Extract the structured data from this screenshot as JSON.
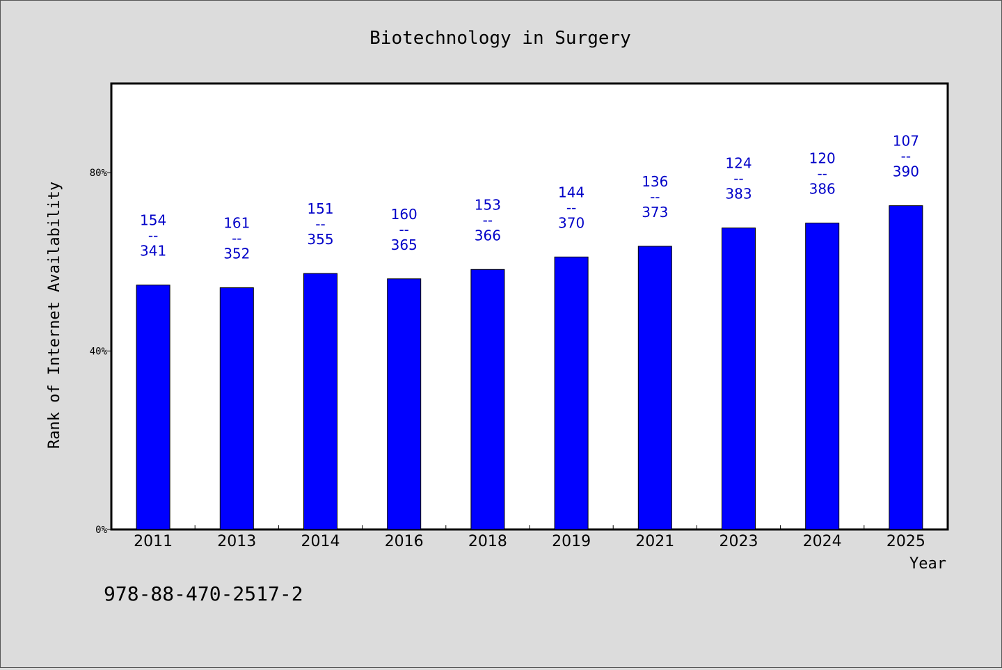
{
  "chart_data": {
    "type": "bar",
    "title": "Biotechnology in Surgery",
    "xlabel": "Year",
    "ylabel": "Rank of Internet Availability",
    "categories": [
      "2011",
      "2013",
      "2014",
      "2016",
      "2018",
      "2019",
      "2021",
      "2023",
      "2024",
      "2025"
    ],
    "values": [
      54.8,
      54.2,
      57.4,
      56.2,
      58.3,
      61.1,
      63.5,
      67.6,
      68.7,
      72.6
    ],
    "bar_labels": [
      {
        "top": "154",
        "sep": "--",
        "bottom": "341"
      },
      {
        "top": "161",
        "sep": "--",
        "bottom": "352"
      },
      {
        "top": "151",
        "sep": "--",
        "bottom": "355"
      },
      {
        "top": "160",
        "sep": "--",
        "bottom": "365"
      },
      {
        "top": "153",
        "sep": "--",
        "bottom": "366"
      },
      {
        "top": "144",
        "sep": "--",
        "bottom": "370"
      },
      {
        "top": "136",
        "sep": "--",
        "bottom": "373"
      },
      {
        "top": "124",
        "sep": "--",
        "bottom": "383"
      },
      {
        "top": "120",
        "sep": "--",
        "bottom": "386"
      },
      {
        "top": "107",
        "sep": "--",
        "bottom": "390"
      }
    ],
    "ylim": [
      0,
      100
    ],
    "yticks": [
      0,
      40,
      80
    ],
    "ytick_labels": [
      "0%",
      "40%",
      "80%"
    ],
    "grid": false,
    "colors": {
      "bar": "#0000ff",
      "bar_label": "#0000c8",
      "background": "#dcdcdc",
      "plot_bg": "#ffffff"
    }
  },
  "footer_text": "978-88-470-2517-2"
}
